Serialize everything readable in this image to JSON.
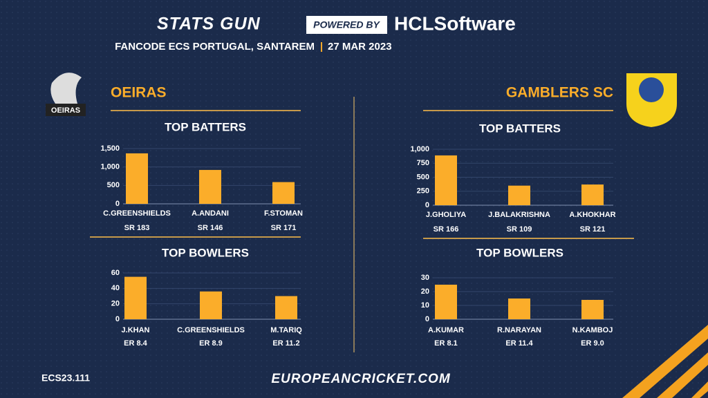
{
  "header": {
    "brand": "STATS GUN",
    "powered": "POWERED BY",
    "sponsor": "HCLSoftware",
    "event": "FANCODE ECS PORTUGAL, SANTAREM",
    "separator": "|",
    "date": "27 MAR 2023"
  },
  "teams": [
    "OEIRAS",
    "GAMBLERS SC"
  ],
  "footer": {
    "code": "ECS23.111",
    "site": "EUROPEANCRICKET.COM"
  },
  "chart_data": [
    {
      "type": "bar",
      "title": "TOP BATTERS",
      "color": "#fbad2a",
      "grid": true,
      "categories": [
        "C.GREENSHIELDS",
        "A.ANDANI",
        "F.STOMAN"
      ],
      "values": [
        1370,
        920,
        590
      ],
      "annotations": [
        "SR 183",
        "SR 146",
        "SR 171"
      ],
      "ylim": [
        0,
        1500
      ],
      "yticks": [
        0,
        500,
        {
          "value": 1000,
          "label": "1,000"
        },
        {
          "value": 1500,
          "label": "1,500"
        }
      ]
    },
    {
      "type": "bar",
      "title": "TOP BOWLERS",
      "color": "#fbad2a",
      "grid": true,
      "categories": [
        "J.KHAN",
        "C.GREENSHIELDS",
        "M.TARIQ"
      ],
      "values": [
        55,
        36,
        30
      ],
      "annotations": [
        "ER  8.4",
        "ER 8.9",
        "ER 11.2"
      ],
      "ylim": [
        0,
        60
      ],
      "yticks": [
        0,
        20,
        40,
        60
      ]
    },
    {
      "type": "bar",
      "title": "TOP BATTERS",
      "color": "#fbad2a",
      "grid": true,
      "categories": [
        "J.GHOLIYA",
        "J.BALAKRISHNA",
        "A.KHOKHAR"
      ],
      "values": [
        890,
        350,
        370
      ],
      "annotations": [
        "SR 166",
        "SR 109",
        "SR 121"
      ],
      "ylim": [
        0,
        1000
      ],
      "yticks": [
        0,
        250,
        500,
        750,
        {
          "value": 1000,
          "label": "1,000"
        }
      ]
    },
    {
      "type": "bar",
      "title": "TOP BOWLERS",
      "color": "#fbad2a",
      "grid": true,
      "categories": [
        "A.KUMAR",
        "R.NARAYAN",
        "N.KAMBOJ"
      ],
      "values": [
        25,
        15,
        14
      ],
      "annotations": [
        "ER 8.1",
        "ER 11.4",
        "ER 9.0"
      ],
      "ylim": [
        0,
        30
      ],
      "yticks": [
        0,
        10,
        20,
        30
      ]
    }
  ]
}
